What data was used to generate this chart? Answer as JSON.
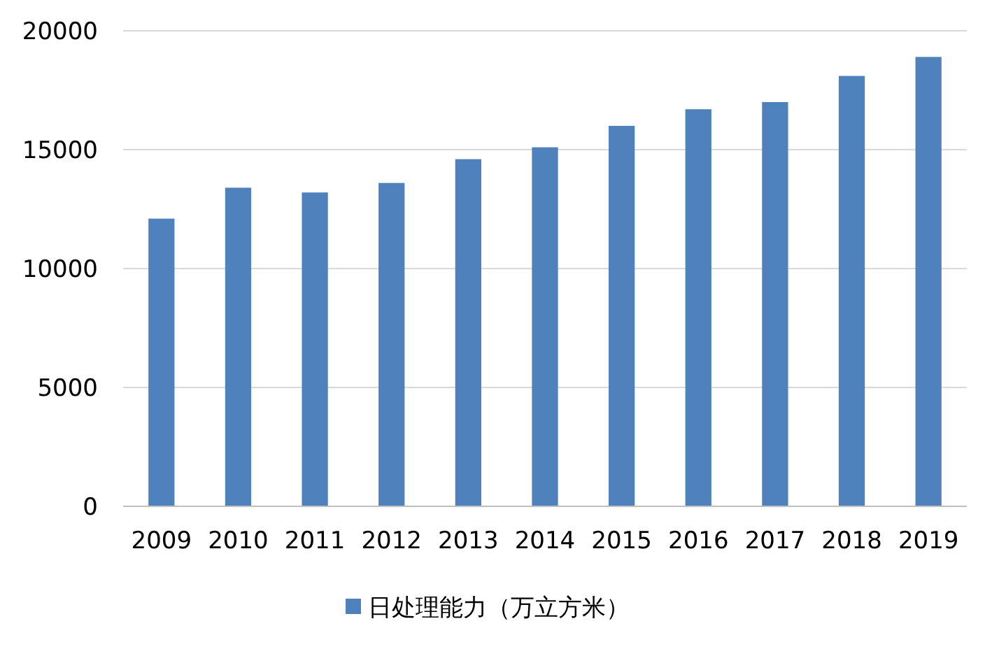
{
  "chart_data": {
    "type": "bar",
    "categories": [
      "2009",
      "2010",
      "2011",
      "2012",
      "2013",
      "2014",
      "2015",
      "2016",
      "2017",
      "2018",
      "2019"
    ],
    "series": [
      {
        "name": "日处理能力（万立方米）",
        "color": "#4f81bd",
        "values": [
          12100,
          13400,
          13200,
          13600,
          14600,
          15100,
          16000,
          16700,
          17000,
          18100,
          18900
        ]
      }
    ],
    "ylim": [
      0,
      20000
    ],
    "yticks": [
      0,
      5000,
      10000,
      15000,
      20000
    ],
    "grid": "y",
    "legend": "bottom"
  }
}
